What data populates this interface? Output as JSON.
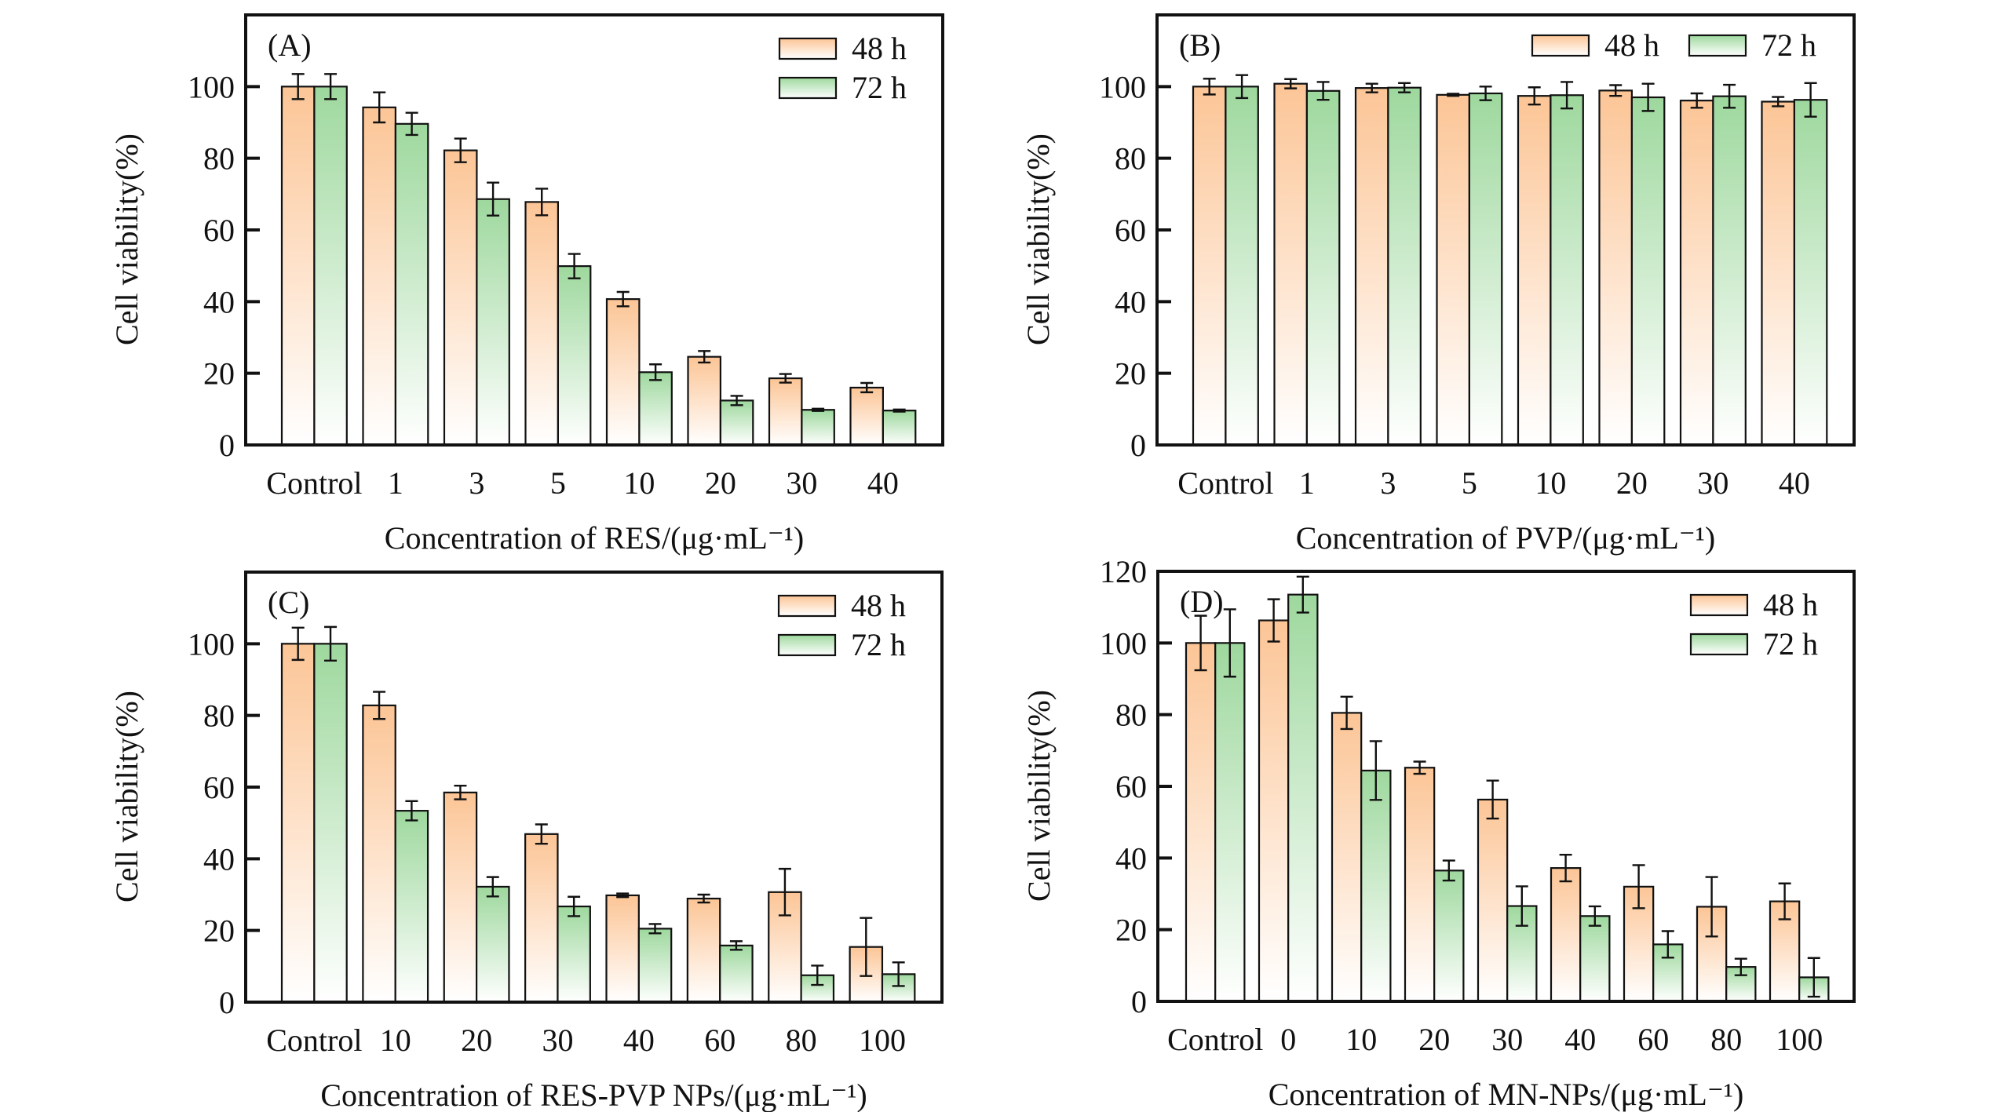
{
  "colors": {
    "series_48h": "#FCC596",
    "series_72h": "#9ED89E",
    "fade": "#FFFFFF",
    "ink": "#111111"
  },
  "chart_data": [
    {
      "panel": "(A)",
      "type": "bar",
      "title": "",
      "xlabel": "Concentration of RES/(μg·mL⁻¹)",
      "ylabel": "Cell viability(%)",
      "ylim": [
        0,
        120
      ],
      "yticks": [
        0,
        20,
        40,
        60,
        80,
        100
      ],
      "grid": false,
      "legend": {
        "placement": "top-right",
        "layout": "vertical",
        "entries": [
          "48 h",
          "72 h"
        ]
      },
      "categories": [
        "Control",
        "1",
        "3",
        "5",
        "10",
        "20",
        "30",
        "40"
      ],
      "series": [
        {
          "name": "48 h",
          "values": [
            100,
            94.2,
            82.2,
            67.8,
            40.7,
            24.6,
            18.6,
            16.0
          ],
          "errors": [
            3.5,
            4.2,
            3.3,
            3.7,
            2.0,
            1.6,
            1.2,
            1.3
          ]
        },
        {
          "name": "72 h",
          "values": [
            100,
            89.6,
            68.6,
            49.9,
            20.3,
            12.4,
            9.8,
            9.6
          ],
          "errors": [
            3.5,
            3.1,
            4.6,
            3.4,
            2.2,
            1.3,
            0.3,
            0.3
          ]
        }
      ]
    },
    {
      "panel": "(B)",
      "type": "bar",
      "title": "",
      "xlabel": "Concentration of PVP/(μg·mL⁻¹)",
      "ylabel": "Cell viability(%)",
      "ylim": [
        0,
        120
      ],
      "yticks": [
        0,
        20,
        40,
        60,
        80,
        100
      ],
      "grid": false,
      "legend": {
        "placement": "top-right",
        "layout": "horizontal",
        "entries": [
          "48 h",
          "72 h"
        ]
      },
      "categories": [
        "Control",
        "1",
        "3",
        "5",
        "10",
        "20",
        "30",
        "40"
      ],
      "series": [
        {
          "name": "48 h",
          "values": [
            100,
            100.8,
            99.6,
            97.7,
            97.4,
            98.9,
            96.1,
            95.8
          ],
          "errors": [
            2.2,
            1.3,
            1.2,
            0.3,
            2.4,
            1.5,
            2.0,
            1.3
          ]
        },
        {
          "name": "72 h",
          "values": [
            100,
            98.8,
            99.7,
            98.1,
            97.6,
            97.0,
            97.3,
            96.3
          ],
          "errors": [
            3.2,
            2.5,
            1.3,
            1.9,
            3.7,
            3.8,
            3.2,
            4.7
          ]
        }
      ]
    },
    {
      "panel": "(C)",
      "type": "bar",
      "title": "",
      "xlabel": "Concentration of RES-PVP NPs/(μg·mL⁻¹)",
      "ylabel": "Cell viability(%)",
      "ylim": [
        0,
        120
      ],
      "yticks": [
        0,
        20,
        40,
        60,
        80,
        100
      ],
      "grid": false,
      "legend": {
        "placement": "top-right",
        "layout": "vertical",
        "entries": [
          "48 h",
          "72 h"
        ]
      },
      "categories": [
        "Control",
        "10",
        "20",
        "30",
        "40",
        "60",
        "80",
        "100"
      ],
      "series": [
        {
          "name": "48 h",
          "values": [
            100,
            82.8,
            58.5,
            46.9,
            29.8,
            28.9,
            30.7,
            15.4
          ],
          "errors": [
            4.5,
            3.8,
            1.9,
            2.7,
            0.5,
            1.1,
            6.5,
            8.1
          ]
        },
        {
          "name": "72 h",
          "values": [
            100,
            53.4,
            32.2,
            26.7,
            20.5,
            15.8,
            7.5,
            7.8
          ],
          "errors": [
            4.7,
            2.7,
            2.7,
            2.7,
            1.3,
            1.2,
            2.7,
            3.3
          ]
        }
      ]
    },
    {
      "panel": "(D)",
      "type": "bar",
      "title": "",
      "xlabel": "Concentration of MN-NPs/(μg·mL⁻¹)",
      "ylabel": "Cell viability(%)",
      "ylim": [
        0,
        120
      ],
      "yticks": [
        0,
        20,
        40,
        60,
        80,
        100,
        120
      ],
      "grid": false,
      "legend": {
        "placement": "top-right",
        "layout": "vertical",
        "entries": [
          "48 h",
          "72 h"
        ]
      },
      "categories": [
        "Control",
        "0",
        "10",
        "20",
        "30",
        "40",
        "60",
        "80",
        "100"
      ],
      "series": [
        {
          "name": "48 h",
          "values": [
            100,
            106.3,
            80.5,
            65.2,
            56.3,
            37.2,
            32.0,
            26.4,
            27.9
          ],
          "errors": [
            7.6,
            5.9,
            4.5,
            1.7,
            5.3,
            3.7,
            6.0,
            8.3,
            5.0
          ]
        },
        {
          "name": "72 h",
          "values": [
            100,
            113.5,
            64.4,
            36.5,
            26.6,
            23.8,
            15.9,
            9.6,
            6.7
          ],
          "errors": [
            9.4,
            5.0,
            8.2,
            2.8,
            5.5,
            2.7,
            3.7,
            2.3,
            5.4
          ]
        }
      ]
    }
  ]
}
